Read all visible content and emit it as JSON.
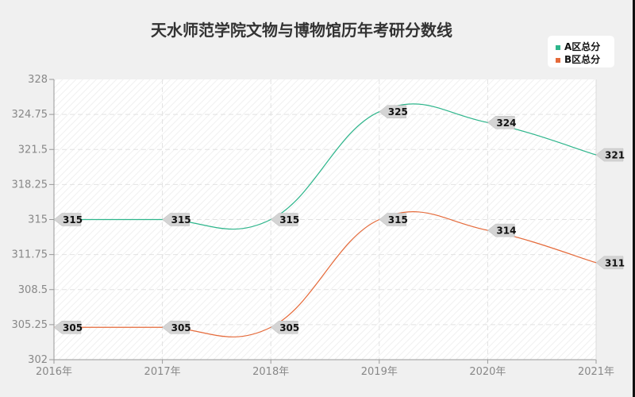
{
  "title": "天水师范学院文物与博物馆历年考研分数线",
  "legend": [
    {
      "label": "A区总分",
      "color": "#2db58b"
    },
    {
      "label": "B区总分",
      "color": "#e56a3a"
    }
  ],
  "chart_data": {
    "type": "line",
    "title": "天水师范学院文物与博物馆历年考研分数线",
    "categories": [
      "2016年",
      "2017年",
      "2018年",
      "2019年",
      "2020年",
      "2021年"
    ],
    "series": [
      {
        "name": "A区总分",
        "values": [
          315,
          315,
          315,
          325,
          324,
          321
        ],
        "color": "#2db58b"
      },
      {
        "name": "B区总分",
        "values": [
          305,
          305,
          305,
          315,
          314,
          311
        ],
        "color": "#e56a3a"
      }
    ],
    "yticks": [
      "328",
      "324.75",
      "321.5",
      "318.25",
      "315",
      "311.75",
      "308.5",
      "305.25",
      "302"
    ],
    "ylim": [
      302,
      328
    ],
    "xlabel": "",
    "ylabel": "",
    "grid": true,
    "legend_position": "top-right",
    "smooth": true
  }
}
